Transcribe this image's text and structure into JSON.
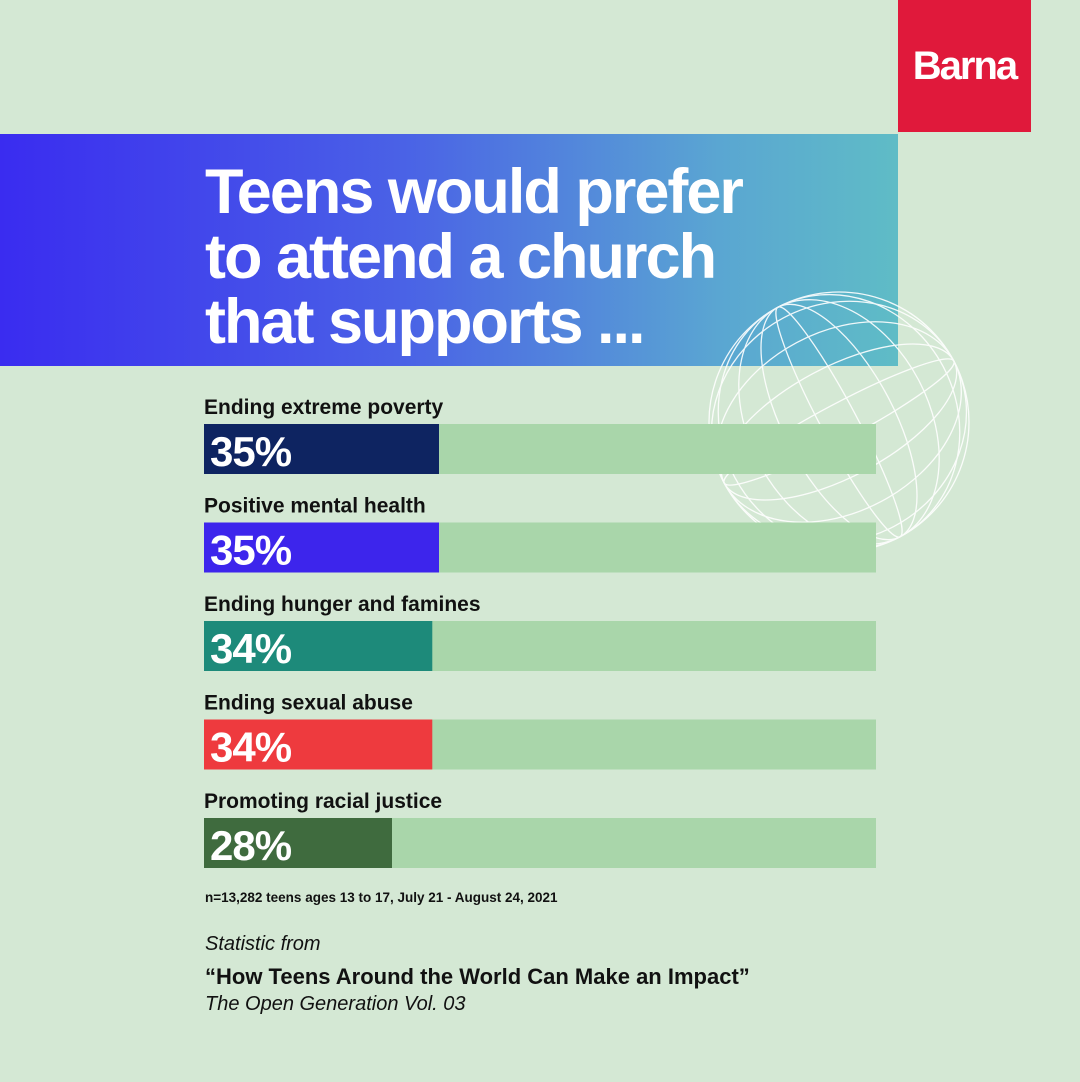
{
  "brand": {
    "logo_text": "Barna"
  },
  "colors": {
    "background": "#d4e8d4",
    "track": "#a9d6aa",
    "logo_red": "#e0193b",
    "banner_start": "#3a2cf0",
    "banner_end": "#5fbcc6"
  },
  "chart_data": {
    "type": "bar",
    "orientation": "horizontal",
    "title": "Teens would prefer to attend a church that supports ...",
    "title_lines": [
      "Teens would prefer",
      "to attend a church",
      "that supports ..."
    ],
    "categories": [
      "Ending extreme poverty",
      "Positive mental health",
      "Ending hunger and famines",
      "Ending sexual abuse",
      "Promoting racial justice"
    ],
    "values": [
      35,
      35,
      34,
      34,
      28
    ],
    "value_labels": [
      "35%",
      "35%",
      "34%",
      "34%",
      "28%"
    ],
    "bar_colors": [
      "#0e2461",
      "#3d25ec",
      "#1d8a7a",
      "#ee3a3e",
      "#3f6b3e"
    ],
    "xlim": [
      0,
      100
    ],
    "grid": false,
    "legend": "none"
  },
  "footnote": "n=13,282 teens ages 13 to 17, July 21 - August 24, 2021",
  "source": {
    "label": "Statistic from",
    "title": "“How Teens Around the World Can Make an Impact”",
    "series": "The Open Generation Vol. 03"
  }
}
